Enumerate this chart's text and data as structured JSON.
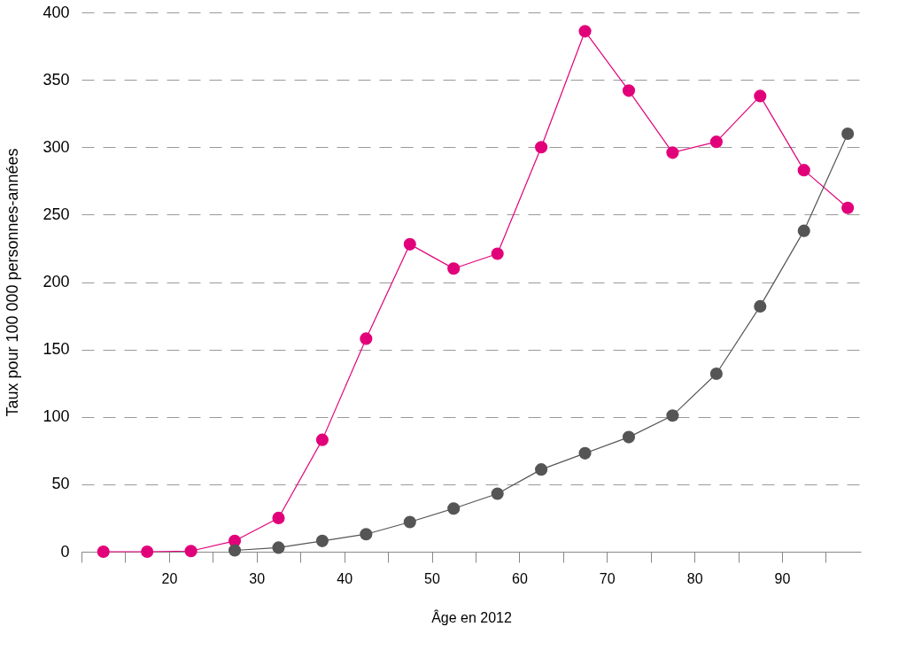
{
  "chart_data": {
    "type": "line",
    "xlabel": "Âge en 2012",
    "ylabel": "Taux pour 100 000 personnes-années",
    "x": [
      12.5,
      17.5,
      22.5,
      27.5,
      32.5,
      37.5,
      42.5,
      47.5,
      52.5,
      57.5,
      62.5,
      67.5,
      72.5,
      77.5,
      82.5,
      87.5,
      92.5,
      97.5
    ],
    "series": [
      {
        "color": "#e2007a",
        "values": [
          0,
          0,
          0.5,
          8,
          25,
          83,
          158,
          228,
          210,
          221,
          300,
          386,
          342,
          296,
          304,
          338,
          283,
          255
        ]
      },
      {
        "color": "#555555",
        "values": [
          null,
          null,
          null,
          1,
          3,
          8,
          13,
          22,
          32,
          43,
          61,
          73,
          85,
          101,
          132,
          182,
          238,
          310
        ]
      }
    ],
    "xlim": [
      10,
      99
    ],
    "xticks": [
      {
        "value": 10,
        "label": null
      },
      {
        "value": 15,
        "label": null
      },
      20,
      {
        "value": 25,
        "label": null
      },
      30,
      {
        "value": 35,
        "label": null
      },
      40,
      {
        "value": 45,
        "label": null
      },
      50,
      {
        "value": 55,
        "label": null
      },
      60,
      {
        "value": 65,
        "label": null
      },
      70,
      {
        "value": 75,
        "label": null
      },
      80,
      {
        "value": 85,
        "label": null
      },
      90,
      {
        "value": 95,
        "label": null
      }
    ],
    "ylim": [
      0,
      400
    ],
    "yticks": [
      0,
      50,
      100,
      150,
      200,
      250,
      300,
      350,
      400
    ],
    "grid": "y",
    "marker": "circle",
    "line_style": "solid",
    "legend": false
  }
}
